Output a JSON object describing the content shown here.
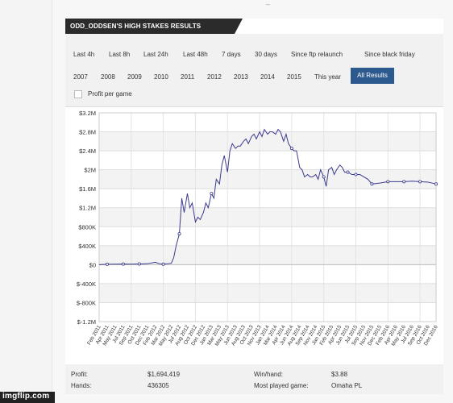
{
  "title": "ODD_ODDSEN'S HIGH STAKES RESULTS",
  "filters": {
    "row1": [
      "Last 4h",
      "Last 8h",
      "Last 24h",
      "Last 48h",
      "7 days",
      "30 days",
      "Since ftp relaunch",
      "Since black friday"
    ],
    "row2": [
      "2007",
      "2008",
      "2009",
      "2010",
      "2011",
      "2012",
      "2013",
      "2014",
      "2015",
      "This year"
    ],
    "active": "All Results"
  },
  "checkbox_label": "Profit per game",
  "stats": {
    "profit_label": "Profit:",
    "profit_value": "$1,694,419",
    "winhand_label": "Win/hand:",
    "winhand_value": "$3.88",
    "hands_label": "Hands:",
    "hands_value": "436305",
    "mostplayed_label": "Most played game:",
    "mostplayed_value": "Omaha PL"
  },
  "watermark": "imgflip.com",
  "top_mark": "–",
  "colors": {
    "line": "#3b3b8f",
    "active": "#2c5a8e",
    "title_bg": "#2b2b2b",
    "bottom_tag": "#222222"
  },
  "chart_data": {
    "type": "line",
    "title": "",
    "xlabel": "",
    "ylabel": "",
    "ylim": [
      -1200000,
      3200000
    ],
    "yticks": [
      3200000,
      2800000,
      2400000,
      2000000,
      1600000,
      1200000,
      800000,
      400000,
      0,
      -400000,
      -800000,
      -1200000
    ],
    "ytick_labels": [
      "$3.2M",
      "$2.8M",
      "$2.4M",
      "$2M",
      "$1.6M",
      "$1.2M",
      "$800K",
      "$400K",
      "$0",
      "$-400K",
      "$-800K",
      "$-1.2M"
    ],
    "x_labels": [
      "Feb 2011",
      "Apr 2011",
      "May 2011",
      "Jul 2011",
      "Sep 2011",
      "Oct 2011",
      "Dec 2011",
      "Feb 2012",
      "Mar 2012",
      "May 2012",
      "Jul 2012",
      "Aug 2012",
      "Oct 2012",
      "Dec 2012",
      "Jan 2013",
      "Mar 2013",
      "May 2013",
      "Jun 2013",
      "Aug 2013",
      "Oct 2013",
      "Nov 2013",
      "Jan 2014",
      "Mar 2014",
      "Apr 2014",
      "Jun 2014",
      "Aug 2014",
      "Sep 2014",
      "Nov 2014",
      "Jan 2015",
      "Feb 2015",
      "Apr 2015",
      "Jun 2015",
      "Jul 2015",
      "Sep 2015",
      "Nov 2015",
      "Dec 2015",
      "Feb 2016",
      "Apr 2016",
      "May 2016",
      "Jul 2016",
      "Sep 2016",
      "Oct 2016",
      "Dec 2016"
    ],
    "grid": true,
    "series": [
      {
        "x": [
          0.0,
          0.5,
          1,
          2,
          3,
          4,
          5,
          6,
          7,
          7.5,
          8,
          8.5,
          9,
          9.3,
          9.6,
          10,
          10.3,
          10.6,
          11,
          11.3,
          11.6,
          12,
          12.3,
          12.6,
          13,
          13.3,
          13.6,
          14,
          14.3,
          14.6,
          15,
          15.3,
          15.6,
          16,
          16.3,
          16.6,
          17,
          17.3,
          17.6,
          18,
          18.3,
          18.6,
          19,
          19.3,
          19.6,
          20,
          20.3,
          20.6,
          21,
          21.3,
          21.6,
          22,
          22.3,
          22.6,
          23,
          23.3,
          23.6,
          24,
          24.3,
          24.6,
          25,
          25.3,
          25.6,
          26,
          26.3,
          26.6,
          27,
          27.3,
          27.6,
          28,
          28.3,
          28.6,
          29,
          29.3,
          29.6,
          30,
          30.3,
          30.6,
          31,
          31.5,
          32,
          32.5,
          33,
          33.5,
          34,
          35,
          36,
          37,
          38,
          39,
          40,
          41,
          42
        ],
        "y": [
          0,
          5000,
          8000,
          10000,
          12000,
          10000,
          15000,
          20000,
          50000,
          20000,
          10000,
          20000,
          30000,
          150000,
          400000,
          650000,
          1400000,
          1100000,
          1500000,
          1200000,
          1300000,
          900000,
          1000000,
          950000,
          1100000,
          1300000,
          1200000,
          1500000,
          1400000,
          1800000,
          1700000,
          2100000,
          2300000,
          1950000,
          2400000,
          2550000,
          2450000,
          2500000,
          2500000,
          2600000,
          2650000,
          2550000,
          2700000,
          2750000,
          2650000,
          2800000,
          2700000,
          2850000,
          2750000,
          2800000,
          2800000,
          2750000,
          2850000,
          2800000,
          2600000,
          2750000,
          2550000,
          2450000,
          2400000,
          2400000,
          2050000,
          2000000,
          1850000,
          1900000,
          1850000,
          1850000,
          1900000,
          1800000,
          2000000,
          1850000,
          1650000,
          2000000,
          2050000,
          1900000,
          2000000,
          2100000,
          2050000,
          1950000,
          1950000,
          1900000,
          1900000,
          1900000,
          1850000,
          1800000,
          1700000,
          1720000,
          1750000,
          1750000,
          1750000,
          1760000,
          1750000,
          1740000,
          1700000
        ]
      }
    ]
  }
}
